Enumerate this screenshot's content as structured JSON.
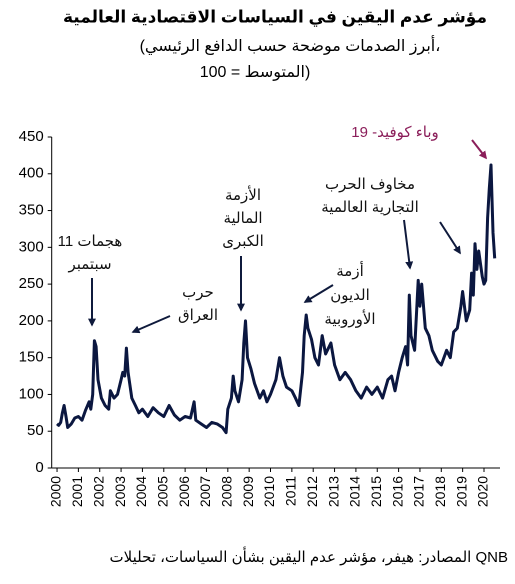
{
  "chart_data": {
    "type": "line",
    "title": "مؤشر عدم اليقين في السياسات الاقتصادية العالمية",
    "subtitle": [
      "(أبرز الصدمات موضحة حسب الدافع الرئيسي،",
      "المتوسط = 100)"
    ],
    "source": "المصادر: هيفر، مؤشر عدم اليقين بشأن السياسات، تحليلات QNB",
    "annotations": [
      {
        "lines": [
          "هجمات 11",
          "سبتمبر"
        ]
      },
      {
        "lines": [
          "حرب",
          "العراق"
        ]
      },
      {
        "lines": [
          "الأزمة",
          "المالية",
          "الكبرى"
        ]
      },
      {
        "lines": [
          "أزمة",
          "الديون",
          "الأوروبية"
        ]
      },
      {
        "lines": [
          "مخاوف الحرب",
          "التجارية العالمية"
        ]
      },
      {
        "lines": [
          "وباء كوفيد- 19"
        ],
        "color": "#8b1e5a"
      }
    ],
    "x": [
      2000.0,
      2000.08,
      2000.17,
      2000.25,
      2000.33,
      2000.42,
      2000.5,
      2000.67,
      2000.83,
      2001.0,
      2001.17,
      2001.33,
      2001.5,
      2001.58,
      2001.67,
      2001.75,
      2001.83,
      2001.92,
      2002.08,
      2002.25,
      2002.42,
      2002.5,
      2002.67,
      2002.83,
      2003.0,
      2003.08,
      2003.17,
      2003.25,
      2003.33,
      2003.5,
      2003.67,
      2003.83,
      2004.0,
      2004.25,
      2004.5,
      2004.75,
      2005.0,
      2005.25,
      2005.5,
      2005.75,
      2006.0,
      2006.25,
      2006.42,
      2006.5,
      2006.75,
      2007.0,
      2007.25,
      2007.5,
      2007.75,
      2007.92,
      2008.0,
      2008.17,
      2008.25,
      2008.33,
      2008.5,
      2008.67,
      2008.75,
      2008.83,
      2008.92,
      2009.08,
      2009.25,
      2009.5,
      2009.67,
      2009.83,
      2010.0,
      2010.25,
      2010.42,
      2010.58,
      2010.75,
      2011.0,
      2011.17,
      2011.33,
      2011.5,
      2011.58,
      2011.67,
      2011.75,
      2011.92,
      2012.08,
      2012.25,
      2012.42,
      2012.58,
      2012.83,
      2013.0,
      2013.25,
      2013.5,
      2013.75,
      2014.0,
      2014.25,
      2014.5,
      2014.75,
      2015.0,
      2015.25,
      2015.5,
      2015.67,
      2015.83,
      2016.0,
      2016.17,
      2016.33,
      2016.42,
      2016.5,
      2016.58,
      2016.75,
      2016.92,
      2017.0,
      2017.08,
      2017.25,
      2017.42,
      2017.58,
      2017.83,
      2018.0,
      2018.25,
      2018.42,
      2018.58,
      2018.75,
      2018.92,
      2019.0,
      2019.17,
      2019.33,
      2019.42,
      2019.5,
      2019.58,
      2019.67,
      2019.75,
      2019.92,
      2020.0,
      2020.08,
      2020.17,
      2020.25,
      2020.33,
      2020.42,
      2020.5
    ],
    "series": [
      {
        "color": "#0b1740",
        "values": [
          60,
          58,
          62,
          75,
          85,
          70,
          55,
          60,
          68,
          70,
          65,
          78,
          90,
          80,
          100,
          173,
          165,
          120,
          95,
          85,
          80,
          105,
          95,
          100,
          120,
          130,
          125,
          163,
          130,
          95,
          85,
          75,
          80,
          70,
          82,
          75,
          70,
          85,
          72,
          65,
          70,
          68,
          90,
          65,
          60,
          55,
          62,
          60,
          55,
          48,
          80,
          95,
          125,
          105,
          90,
          120,
          170,
          200,
          150,
          135,
          115,
          95,
          105,
          90,
          100,
          120,
          150,
          125,
          110,
          105,
          95,
          85,
          130,
          180,
          208,
          190,
          175,
          150,
          140,
          180,
          155,
          170,
          140,
          120,
          130,
          120,
          105,
          95,
          110,
          100,
          110,
          95,
          120,
          125,
          105,
          130,
          150,
          165,
          140,
          235,
          180,
          160,
          255,
          220,
          250,
          190,
          180,
          160,
          145,
          140,
          160,
          150,
          185,
          190,
          220,
          240,
          200,
          215,
          265,
          235,
          305,
          270,
          295,
          260,
          250,
          255,
          340,
          380,
          412,
          320,
          285
        ]
      }
    ],
    "xlim": [
      1999.75,
      2020.75
    ],
    "xticks": [
      2000,
      2001,
      2002,
      2003,
      2004,
      2005,
      2006,
      2007,
      2008,
      2009,
      2010,
      2011,
      2012,
      2013,
      2014,
      2015,
      2016,
      2017,
      2018,
      2019,
      2020
    ],
    "ylim": [
      0,
      450
    ],
    "yticks": [
      0,
      50,
      100,
      150,
      200,
      250,
      300,
      350,
      400,
      450
    ]
  }
}
